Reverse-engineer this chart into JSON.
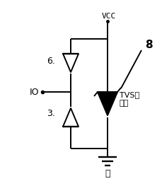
{
  "vcc_label": "VCC",
  "gnd_label": "地",
  "io_label": "IO",
  "tvs_label": "TVS管\n阵列",
  "label_6": "6.",
  "label_3": "3.",
  "label_8": "8",
  "bg_color": "#ffffff",
  "line_color": "#000000",
  "figsize": [
    2.3,
    2.63
  ],
  "dpi": 100
}
